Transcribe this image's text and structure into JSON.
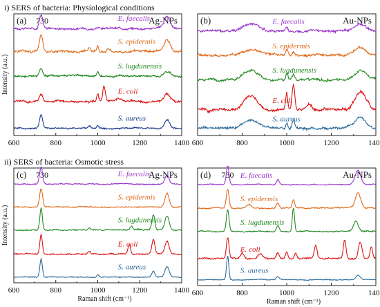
{
  "section_titles": {
    "top": "i) SERS of bacteria: Physiological conditions",
    "bottom": "ii) SERS of bacteria: Osmotic stress"
  },
  "axes": {
    "ylabel": "Intensity (a.u.)",
    "xlabel": "Raman shift (cm⁻¹)",
    "xticks": [
      "600",
      "800",
      "1000",
      "1200",
      "1400"
    ]
  },
  "chart_data": [
    {
      "type": "line",
      "panel_label": "(a)",
      "np_label": "Ag-NPs",
      "peak_label": "730",
      "xlim": [
        600,
        1400
      ],
      "series": [
        {
          "name": "E. faecalis",
          "color": "#9933cc",
          "baseline": 0.88,
          "noise": 0.012,
          "peaks": [
            [
              730,
              0.12,
              8
            ],
            [
              1330,
              0.1,
              15
            ]
          ]
        },
        {
          "name": "S. epidermis",
          "color": "#e06a1a",
          "baseline": 0.69,
          "noise": 0.012,
          "peaks": [
            [
              730,
              0.13,
              8
            ],
            [
              960,
              0.03,
              6
            ],
            [
              1000,
              0.05,
              5
            ],
            [
              1050,
              0.03,
              8
            ],
            [
              1330,
              0.1,
              15
            ]
          ]
        },
        {
          "name": "S. lugdunensis",
          "color": "#228822",
          "baseline": 0.49,
          "noise": 0.01,
          "peaks": [
            [
              730,
              0.06,
              8
            ],
            [
              1000,
              0.03,
              5
            ],
            [
              1330,
              0.04,
              15
            ]
          ]
        },
        {
          "name": "E. coli",
          "color": "#dd1111",
          "baseline": 0.28,
          "noise": 0.012,
          "peaks": [
            [
              730,
              0.06,
              8
            ],
            [
              1000,
              0.06,
              5
            ],
            [
              1030,
              0.13,
              6
            ],
            [
              1100,
              0.03,
              10
            ],
            [
              1330,
              0.06,
              15
            ]
          ]
        },
        {
          "name": "S. aureus",
          "color": "#1a3a8a",
          "baseline": 0.06,
          "noise": 0.008,
          "peaks": [
            [
              730,
              0.11,
              7
            ],
            [
              960,
              0.02,
              6
            ],
            [
              1000,
              0.03,
              5
            ],
            [
              1330,
              0.07,
              12
            ]
          ]
        }
      ]
    },
    {
      "type": "line",
      "panel_label": "(b)",
      "np_label": "Au-NPs",
      "peak_label": "",
      "xlim": [
        600,
        1400
      ],
      "series": [
        {
          "name": "E. faecalis",
          "color": "#9933cc",
          "baseline": 0.86,
          "noise": 0.014,
          "peaks": [
            [
              840,
              0.06,
              35
            ],
            [
              1000,
              0.04,
              5
            ],
            [
              1330,
              0.05,
              25
            ]
          ]
        },
        {
          "name": "S. epidermis",
          "color": "#e06a1a",
          "baseline": 0.66,
          "noise": 0.014,
          "peaks": [
            [
              840,
              0.05,
              35
            ],
            [
              1000,
              0.05,
              5
            ],
            [
              1030,
              0.03,
              5
            ],
            [
              1330,
              0.06,
              25
            ]
          ]
        },
        {
          "name": "S. lugdunensis",
          "color": "#228822",
          "baseline": 0.46,
          "noise": 0.014,
          "peaks": [
            [
              840,
              0.07,
              35
            ],
            [
              1000,
              0.05,
              5
            ],
            [
              1030,
              0.04,
              6
            ],
            [
              1330,
              0.07,
              25
            ]
          ]
        },
        {
          "name": "E. coli",
          "color": "#dd1111",
          "baseline": 0.21,
          "noise": 0.016,
          "peaks": [
            [
              840,
              0.12,
              30
            ],
            [
              1000,
              0.13,
              5
            ],
            [
              1030,
              0.2,
              6
            ],
            [
              1100,
              0.05,
              12
            ],
            [
              1330,
              0.15,
              25
            ]
          ]
        },
        {
          "name": "S. aureus",
          "color": "#2a6a9a",
          "baseline": 0.06,
          "noise": 0.014,
          "peaks": [
            [
              840,
              0.07,
              35
            ],
            [
              1000,
              0.05,
              5
            ],
            [
              1030,
              0.06,
              6
            ],
            [
              1330,
              0.08,
              25
            ]
          ]
        }
      ]
    },
    {
      "type": "line",
      "panel_label": "(c)",
      "np_label": "Ag-NPs",
      "peak_label": "730",
      "xlim": [
        600,
        1400
      ],
      "series": [
        {
          "name": "E. faecalis",
          "color": "#9933cc",
          "baseline": 0.86,
          "noise": 0.006,
          "peaks": [
            [
              730,
              0.15,
              7
            ],
            [
              1330,
              0.08,
              10
            ]
          ]
        },
        {
          "name": "S. epidermis",
          "color": "#e06a1a",
          "baseline": 0.66,
          "noise": 0.006,
          "peaks": [
            [
              730,
              0.16,
              7
            ],
            [
              1330,
              0.12,
              10
            ]
          ]
        },
        {
          "name": "S. lugdunensis",
          "color": "#228822",
          "baseline": 0.46,
          "noise": 0.007,
          "peaks": [
            [
              730,
              0.19,
              6
            ],
            [
              960,
              0.02,
              6
            ],
            [
              1160,
              0.03,
              6
            ],
            [
              1265,
              0.13,
              7
            ],
            [
              1330,
              0.12,
              10
            ]
          ]
        },
        {
          "name": "E. coli",
          "color": "#dd1111",
          "baseline": 0.25,
          "noise": 0.007,
          "peaks": [
            [
              730,
              0.17,
              6
            ],
            [
              960,
              0.02,
              6
            ],
            [
              1150,
              0.08,
              6
            ],
            [
              1265,
              0.12,
              7
            ],
            [
              1330,
              0.11,
              10
            ]
          ]
        },
        {
          "name": "S. aureus",
          "color": "#2a6a9a",
          "baseline": 0.05,
          "noise": 0.005,
          "peaks": [
            [
              730,
              0.16,
              6
            ],
            [
              1000,
              0.02,
              5
            ],
            [
              1265,
              0.05,
              7
            ],
            [
              1330,
              0.09,
              10
            ]
          ]
        }
      ]
    },
    {
      "type": "line",
      "panel_label": "(d)",
      "np_label": "Au-NPs",
      "peak_label": "730",
      "xlim": [
        600,
        1400
      ],
      "series": [
        {
          "name": "E. faecalis",
          "color": "#9933cc",
          "baseline": 0.86,
          "noise": 0.006,
          "peaks": [
            [
              735,
              0.16,
              6
            ],
            [
              960,
              0.04,
              6
            ],
            [
              1320,
              0.12,
              12
            ]
          ]
        },
        {
          "name": "S. epidermis",
          "color": "#e06a1a",
          "baseline": 0.66,
          "noise": 0.007,
          "peaks": [
            [
              735,
              0.16,
              6
            ],
            [
              830,
              0.03,
              10
            ],
            [
              960,
              0.04,
              6
            ],
            [
              1030,
              0.07,
              5
            ],
            [
              1320,
              0.13,
              12
            ]
          ]
        },
        {
          "name": "S. lugdunensis",
          "color": "#228822",
          "baseline": 0.46,
          "noise": 0.007,
          "peaks": [
            [
              735,
              0.18,
              6
            ],
            [
              960,
              0.05,
              6
            ],
            [
              1030,
              0.2,
              5
            ],
            [
              1310,
              0.09,
              10
            ]
          ]
        },
        {
          "name": "E. coli",
          "color": "#dd1111",
          "baseline": 0.23,
          "noise": 0.009,
          "peaks": [
            [
              735,
              0.18,
              6
            ],
            [
              800,
              0.05,
              8
            ],
            [
              880,
              0.04,
              10
            ],
            [
              960,
              0.05,
              6
            ],
            [
              1000,
              0.06,
              5
            ],
            [
              1040,
              0.05,
              5
            ],
            [
              1130,
              0.11,
              6
            ],
            [
              1260,
              0.16,
              6
            ],
            [
              1330,
              0.14,
              8
            ],
            [
              1380,
              0.1,
              6
            ]
          ]
        },
        {
          "name": "S. aureus",
          "color": "#2a6a9a",
          "baseline": 0.05,
          "noise": 0.005,
          "peaks": [
            [
              735,
              0.2,
              5
            ],
            [
              960,
              0.03,
              6
            ],
            [
              1320,
              0.04,
              10
            ]
          ]
        }
      ]
    }
  ]
}
